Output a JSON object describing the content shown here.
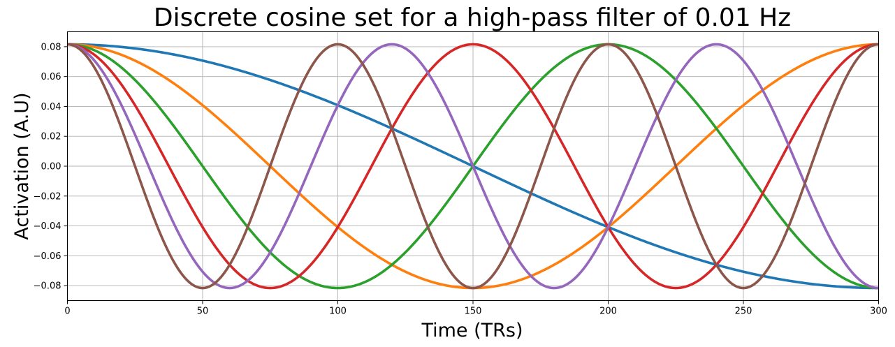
{
  "chart_data": {
    "type": "line",
    "title": "Discrete cosine set for a high-pass filter of 0.01 Hz",
    "xlabel": "Time (TRs)",
    "ylabel": "Activation (A.U)",
    "xlim": [
      0,
      300
    ],
    "ylim": [
      -0.09,
      0.09
    ],
    "x_ticks": [
      "0",
      "50",
      "100",
      "150",
      "200",
      "250",
      "300"
    ],
    "y_ticks": [
      "0.08",
      "0.06",
      "0.04",
      "0.02",
      "0.00",
      "−0.02",
      "−0.04",
      "−0.06",
      "−0.08"
    ],
    "grid": true,
    "series_formula": "y = amplitude * cos(pi * k * x / 300)",
    "amplitude": 0.0816,
    "x_start": 0,
    "x_end": 300,
    "series": [
      {
        "k": 1,
        "color": "#1f77b4"
      },
      {
        "k": 2,
        "color": "#ff7f0e"
      },
      {
        "k": 3,
        "color": "#2ca02c"
      },
      {
        "k": 4,
        "color": "#d62728"
      },
      {
        "k": 5,
        "color": "#9467bd"
      },
      {
        "k": 6,
        "color": "#8c564b"
      }
    ]
  }
}
